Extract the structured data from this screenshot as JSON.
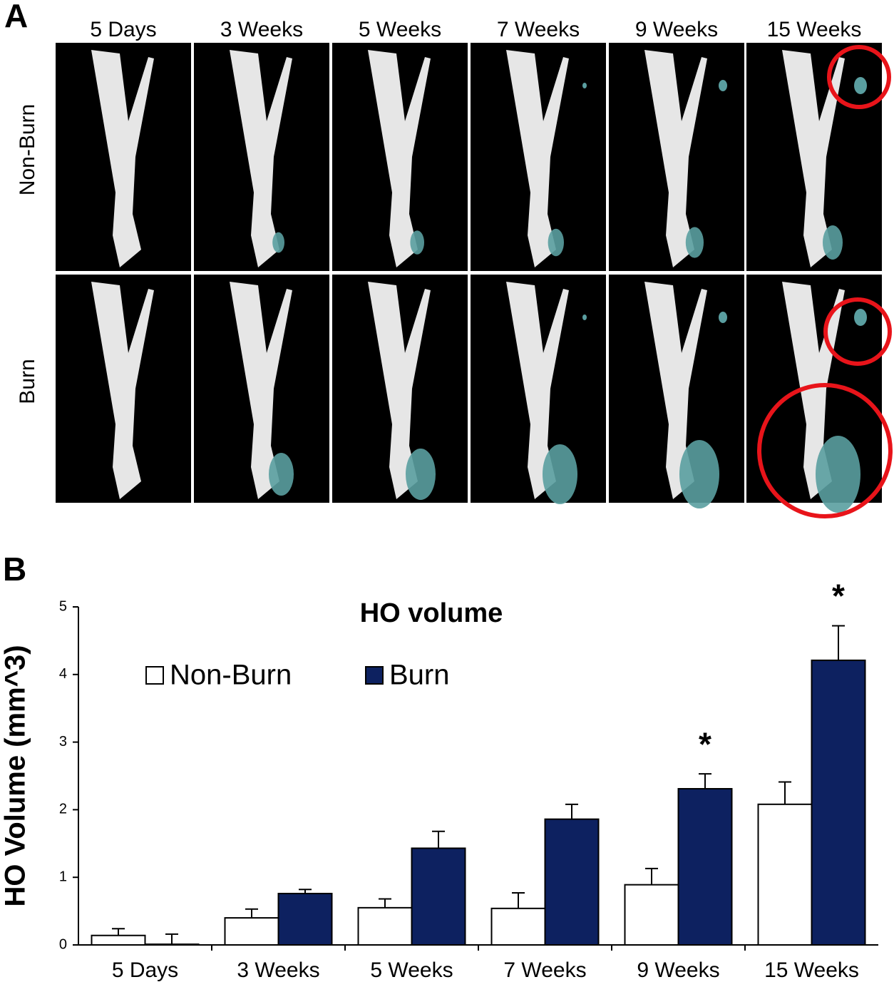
{
  "panel_a": {
    "label": "A",
    "columns": [
      "5 Days",
      "3 Weeks",
      "5 Weeks",
      "7 Weeks",
      "9 Weeks",
      "15 Weeks"
    ],
    "rows": [
      "Non-Burn",
      "Burn"
    ]
  },
  "chart_data": {
    "type": "bar",
    "panel_label": "B",
    "title": "HO volume",
    "ylabel": "HO Volume (mm^3)",
    "categories": [
      "5 Days",
      "3 Weeks",
      "5 Weeks",
      "7 Weeks",
      "9 Weeks",
      "15 Weeks"
    ],
    "series": [
      {
        "name": "Non-Burn",
        "color": "#ffffff",
        "values": [
          0.14,
          0.4,
          0.55,
          0.54,
          0.89,
          2.08
        ],
        "errors": [
          0.1,
          0.13,
          0.13,
          0.23,
          0.24,
          0.33
        ]
      },
      {
        "name": "Burn",
        "color": "#0d2160",
        "values": [
          0.01,
          0.76,
          1.43,
          1.86,
          2.31,
          4.21
        ],
        "errors": [
          0.15,
          0.06,
          0.25,
          0.22,
          0.22,
          0.51
        ],
        "significance": [
          null,
          null,
          null,
          null,
          "*",
          "*"
        ]
      }
    ],
    "ylim": [
      0,
      5
    ],
    "yticks": [
      0,
      1,
      2,
      3,
      4,
      5
    ],
    "grid": false,
    "legend": "upper left"
  }
}
